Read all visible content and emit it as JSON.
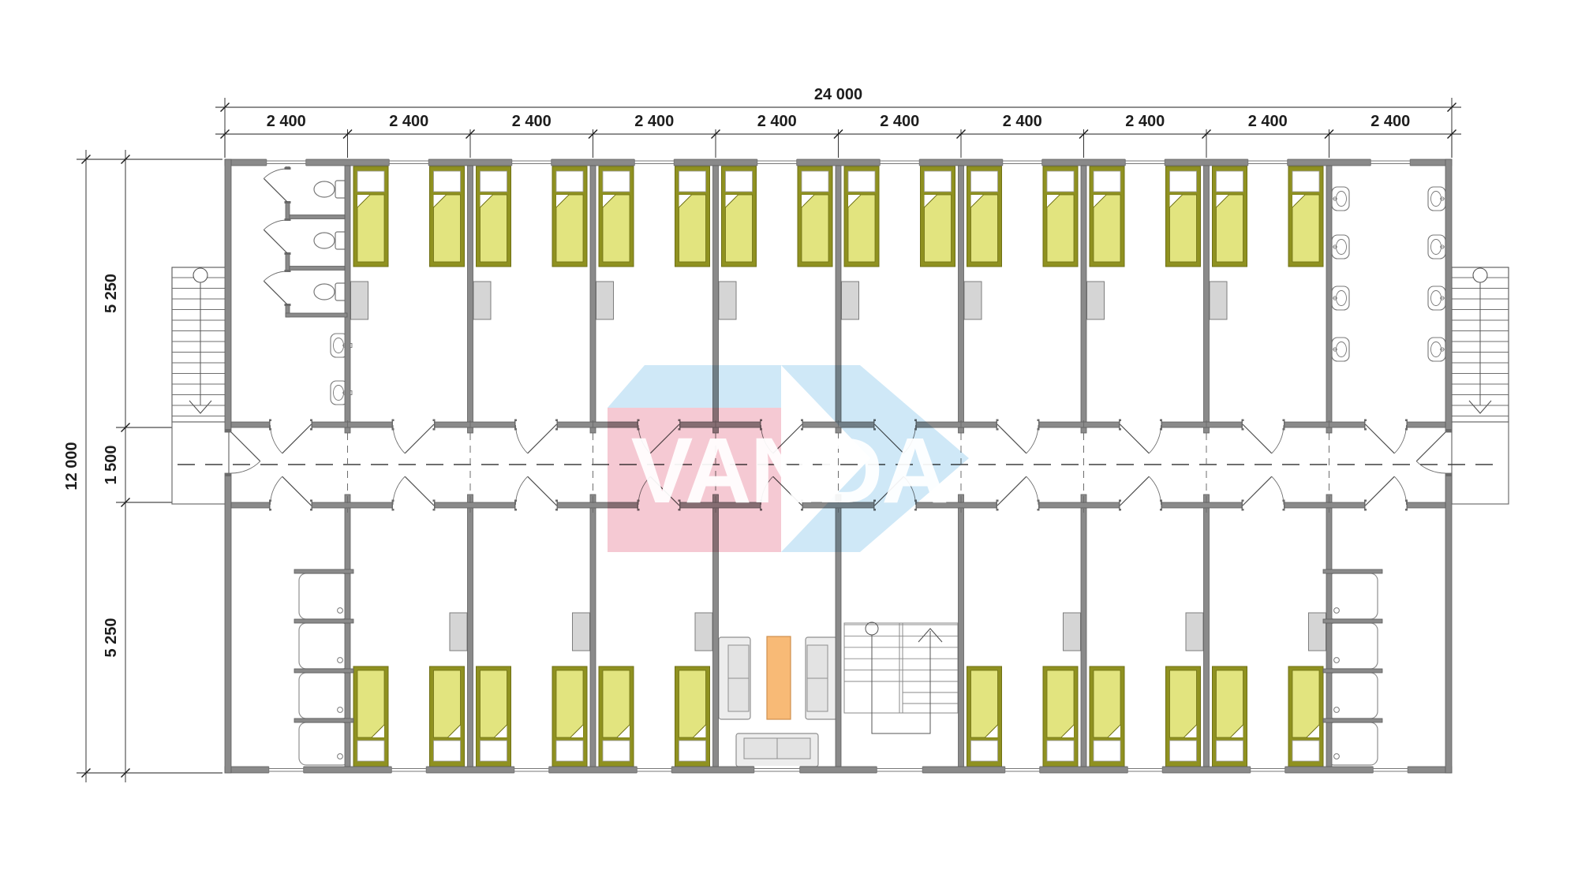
{
  "watermark": {
    "text": "VANDA",
    "pink": "#f5c9d3",
    "blue": "#cfe8f7",
    "letters": "#ffffff"
  },
  "dimensions": {
    "top_total": "24 000",
    "top_segments": [
      "2 400",
      "2 400",
      "2 400",
      "2 400",
      "2 400",
      "2 400",
      "2 400",
      "2 400",
      "2 400",
      "2 400"
    ],
    "left_total": "12 000",
    "left_segments": [
      "5 250",
      "1 500",
      "5 250"
    ]
  },
  "plan": {
    "module_count": 10,
    "modules": [
      {
        "top": "wc-toilets",
        "bottom": "shower-room"
      },
      {
        "top": "bedroom",
        "bottom": "bedroom"
      },
      {
        "top": "bedroom",
        "bottom": "bedroom"
      },
      {
        "top": "bedroom",
        "bottom": "bedroom"
      },
      {
        "top": "bedroom",
        "bottom": "lounge"
      },
      {
        "top": "bedroom",
        "bottom": "staircase"
      },
      {
        "top": "bedroom",
        "bottom": "bedroom"
      },
      {
        "top": "bedroom",
        "bottom": "bedroom"
      },
      {
        "top": "bedroom",
        "bottom": "bedroom"
      },
      {
        "top": "washbasins",
        "bottom": "shower-room"
      }
    ],
    "counts": {
      "beds": 28,
      "toilets": 3,
      "washbasins": 10,
      "shower_trays": 8,
      "exterior_stairs": 2,
      "interior_stairs": 1,
      "lounge_sofas": 3,
      "lounge_tables": 1
    }
  },
  "colors": {
    "wall": "#8a8a8a",
    "wall_edge": "#5e5e5e",
    "wall_dark": "#6a6a6a",
    "line": "#555555",
    "fixture": "#787878",
    "bed_frame": "#8f9120",
    "bed_edge": "#6f7014",
    "bed_blanket": "#e2e47f",
    "pillow": "#ffffff",
    "locker": "#d5d5d5",
    "locker_edge": "#7d7d7d",
    "sofa": "#ededed",
    "sofa_edge": "#8f8f8f",
    "table": "#f8ba76",
    "table_edge": "#cf8f4e",
    "dim": "#1d1d1d"
  }
}
